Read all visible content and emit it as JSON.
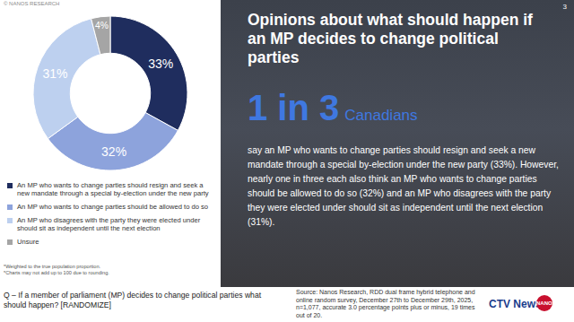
{
  "chart_data": {
    "type": "donut",
    "categories": [
      "An MP who wants to change parties should resign and seek a new mandate through a special by-election under the new party",
      "An MP who wants to change parties should be allowed to do so",
      "An MP who disagrees with the party they were elected under should sit as independent until the next election",
      "Unsure"
    ],
    "values": [
      33,
      32,
      31,
      4
    ],
    "value_labels": [
      "33%",
      "32%",
      "31%",
      "4%"
    ],
    "colors": [
      "#1f2d5e",
      "#8da3dc",
      "#bdd0ef",
      "#a5a5a5"
    ],
    "data_labels": true
  },
  "slide": {
    "copyright": "© NANOS RESEARCH",
    "page_number": "3",
    "footnotes": [
      "*Weighted to the true population proportion.",
      "*Charts may not add up to 100 due to rounding."
    ],
    "panel_title": "Opinions about what should happen if an MP decides to change political parties",
    "highlight_number": "1 in 3",
    "highlight_word": "Canadians",
    "body": "say an MP who wants to change parties should resign and seek a new mandate through a special by-election under the new party (33%). However, nearly one in three each also think an MP who wants to change parties should be allowed to do so (32%) and an MP who disagrees with the party they were elected under should sit as independent until the next election (31%).",
    "question": "Q – If a member of parliament (MP) decides to change political parties what should happen? [RANDOMIZE]",
    "source": "Source: Nanos Research, RDD dual frame hybrid telephone and online random survey, December 27th to December 29th, 2025, n=1,077, accurate 3.0 percentage points plus or minus, 19 times out of 20.",
    "logos": [
      "CTV News",
      "NANOS"
    ]
  }
}
